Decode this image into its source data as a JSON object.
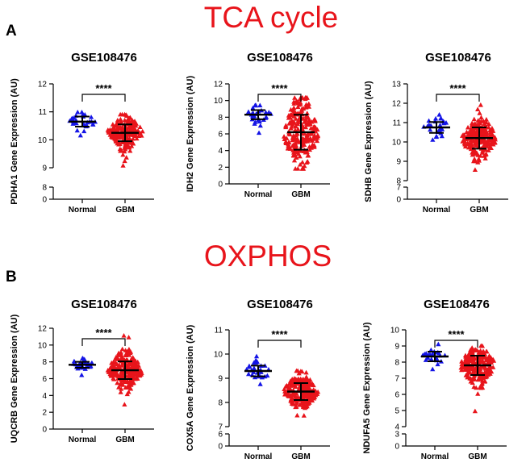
{
  "figure": {
    "section_titles": {
      "tca": "TCA cycle",
      "oxphos": "OXPHOS"
    },
    "panel_letters": {
      "a": "A",
      "b": "B"
    },
    "colors": {
      "normal": "#1414e6",
      "gbm": "#e8141b",
      "title": "#e8141b"
    }
  },
  "chart_data": [
    {
      "type": "scatter",
      "title": "GSE108476",
      "ylabel": "PDHA1 Gene Expression  (AU)",
      "categories": [
        "Normal",
        "GBM"
      ],
      "ylim": [
        9,
        12
      ],
      "yticks": [
        9,
        10,
        11,
        12
      ],
      "low_ticks": [
        0,
        8
      ],
      "significance": "****",
      "series": [
        {
          "name": "Normal",
          "n": 28,
          "mean": 10.65,
          "sd": 0.18,
          "min": 10.15,
          "max": 10.98,
          "marker": "triangle-up"
        },
        {
          "name": "GBM",
          "n": 220,
          "mean": 10.25,
          "sd": 0.3,
          "min": 9.07,
          "max": 10.9,
          "marker": "triangle-up"
        }
      ]
    },
    {
      "type": "scatter",
      "title": "GSE108476",
      "ylabel": "IDH2 Gene Expression  (AU)",
      "categories": [
        "Normal",
        "GBM"
      ],
      "ylim": [
        0,
        12
      ],
      "yticks": [
        0,
        2,
        4,
        6,
        8,
        10,
        12
      ],
      "low_ticks": [],
      "significance": "****",
      "series": [
        {
          "name": "Normal",
          "n": 28,
          "mean": 8.3,
          "sd": 0.55,
          "min": 6.1,
          "max": 9.4,
          "marker": "triangle-up"
        },
        {
          "name": "GBM",
          "n": 220,
          "mean": 6.2,
          "sd": 2.1,
          "min": 1.8,
          "max": 10.3,
          "marker": "triangle-up"
        }
      ]
    },
    {
      "type": "scatter",
      "title": "GSE108476",
      "ylabel": "SDHB Gene Expression  (AU)",
      "categories": [
        "Normal",
        "GBM"
      ],
      "ylim": [
        8,
        13
      ],
      "yticks": [
        8,
        9,
        10,
        11,
        12,
        13
      ],
      "low_ticks": [
        0,
        7
      ],
      "significance": "****",
      "series": [
        {
          "name": "Normal",
          "n": 28,
          "mean": 10.75,
          "sd": 0.28,
          "min": 10.1,
          "max": 11.4,
          "marker": "triangle-up"
        },
        {
          "name": "GBM",
          "n": 220,
          "mean": 10.2,
          "sd": 0.55,
          "min": 8.55,
          "max": 11.9,
          "marker": "triangle-up"
        }
      ]
    },
    {
      "type": "scatter",
      "title": "GSE108476",
      "ylabel": "UQCRB Gene Expression  (AU)",
      "categories": [
        "Normal",
        "GBM"
      ],
      "ylim": [
        0,
        12
      ],
      "yticks": [
        0,
        2,
        4,
        6,
        8,
        10,
        12
      ],
      "low_ticks": [],
      "significance": "****",
      "series": [
        {
          "name": "Normal",
          "n": 28,
          "mean": 7.65,
          "sd": 0.35,
          "min": 6.4,
          "max": 8.4,
          "marker": "triangle-up"
        },
        {
          "name": "GBM",
          "n": 220,
          "mean": 7.0,
          "sd": 1.05,
          "min": 2.9,
          "max": 11.1,
          "marker": "triangle-up"
        }
      ]
    },
    {
      "type": "scatter",
      "title": "GSE108476",
      "ylabel": "COX5A Gene Expression  (AU)",
      "categories": [
        "Normal",
        "GBM"
      ],
      "ylim": [
        7,
        11
      ],
      "yticks": [
        7,
        8,
        9,
        10,
        11
      ],
      "low_ticks": [
        0,
        6
      ],
      "significance": "****",
      "series": [
        {
          "name": "Normal",
          "n": 28,
          "mean": 9.3,
          "sd": 0.22,
          "min": 8.75,
          "max": 9.9,
          "marker": "triangle-up"
        },
        {
          "name": "GBM",
          "n": 220,
          "mean": 8.45,
          "sd": 0.35,
          "min": 7.45,
          "max": 9.3,
          "marker": "triangle-up"
        }
      ]
    },
    {
      "type": "scatter",
      "title": "GSE108476",
      "ylabel": "NDUFA5 Gene Expression  (AU)",
      "categories": [
        "Normal",
        "GBM"
      ],
      "ylim": [
        4,
        10
      ],
      "yticks": [
        4,
        5,
        6,
        7,
        8,
        9,
        10
      ],
      "low_ticks": [
        0,
        3
      ],
      "significance": "****",
      "series": [
        {
          "name": "Normal",
          "n": 28,
          "mean": 8.35,
          "sd": 0.3,
          "min": 7.55,
          "max": 9.1,
          "marker": "triangle-up"
        },
        {
          "name": "GBM",
          "n": 220,
          "mean": 7.8,
          "sd": 0.6,
          "min": 4.95,
          "max": 9.0,
          "marker": "triangle-up"
        }
      ]
    }
  ]
}
